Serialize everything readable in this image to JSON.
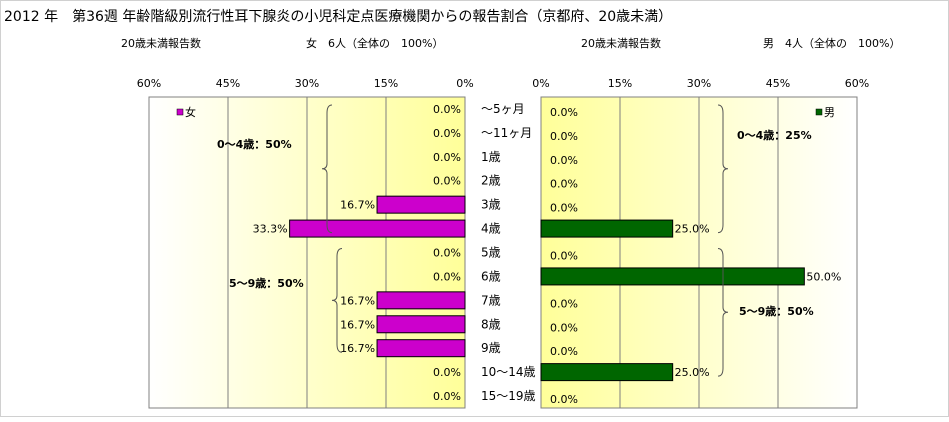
{
  "header": {
    "title": "2012 年　第36週 年齢階級別流行性耳下腺炎の小児科定点医療機関からの報告割合（京都府、20歳未満）",
    "left_caption": "20歳未満報告数",
    "left_count": "女　6人（全体の　100%）",
    "right_caption": "20歳未満報告数",
    "right_count": "男　4人（全体の　100%）"
  },
  "colors": {
    "female": "#cc00cc",
    "male": "#006600",
    "plot_edge": "#ffffff",
    "plot_center": "#ffff99"
  },
  "chart_data": [
    {
      "type": "bar",
      "orientation": "horizontal",
      "direction": "right-to-left",
      "legend": "女",
      "legend_placement": "top-left",
      "categories": [
        "～5ヶ月",
        "～11ヶ月",
        "1歳",
        "2歳",
        "3歳",
        "4歳",
        "5歳",
        "6歳",
        "7歳",
        "8歳",
        "9歳",
        "10～14歳",
        "15～19歳"
      ],
      "values": [
        0.0,
        0.0,
        0.0,
        0.0,
        16.7,
        33.3,
        0.0,
        0.0,
        16.7,
        16.7,
        16.7,
        0.0,
        0.0
      ],
      "labels": [
        "0.0%",
        "0.0%",
        "0.0%",
        "0.0%",
        "16.7%",
        "33.3%",
        "0.0%",
        "0.0%",
        "16.7%",
        "16.7%",
        "16.7%",
        "0.0%",
        "0.0%"
      ],
      "xlim": [
        0,
        60
      ],
      "ticks": [
        "0%",
        "15%",
        "30%",
        "45%",
        "60%"
      ],
      "grid": true,
      "annotations": [
        {
          "text": "0～4歳：50%",
          "from_category": 0,
          "to_category": 5
        },
        {
          "text": "5～9歳：50%",
          "from_category": 6,
          "to_category": 10
        }
      ]
    },
    {
      "type": "bar",
      "orientation": "horizontal",
      "direction": "left-to-right",
      "legend": "男",
      "legend_placement": "top-right",
      "categories": [
        "～5ヶ月",
        "～11ヶ月",
        "1歳",
        "2歳",
        "3歳",
        "4歳",
        "5歳",
        "6歳",
        "7歳",
        "8歳",
        "9歳",
        "10～14歳",
        "15～19歳"
      ],
      "values": [
        0.0,
        0.0,
        0.0,
        0.0,
        0.0,
        25.0,
        0.0,
        50.0,
        0.0,
        0.0,
        0.0,
        25.0,
        0.0
      ],
      "labels": [
        "0.0%",
        "0.0%",
        "0.0%",
        "0.0%",
        "0.0%",
        "25.0%",
        "0.0%",
        "50.0%",
        "0.0%",
        "0.0%",
        "0.0%",
        "25.0%",
        "0.0%"
      ],
      "xlim": [
        0,
        60
      ],
      "ticks": [
        "0%",
        "15%",
        "30%",
        "45%",
        "60%"
      ],
      "grid": true,
      "annotations": [
        {
          "text": "0～4歳：25%",
          "from_category": 0,
          "to_category": 5
        },
        {
          "text": "5～9歳：50%",
          "from_category": 6,
          "to_category": 11
        }
      ]
    }
  ]
}
